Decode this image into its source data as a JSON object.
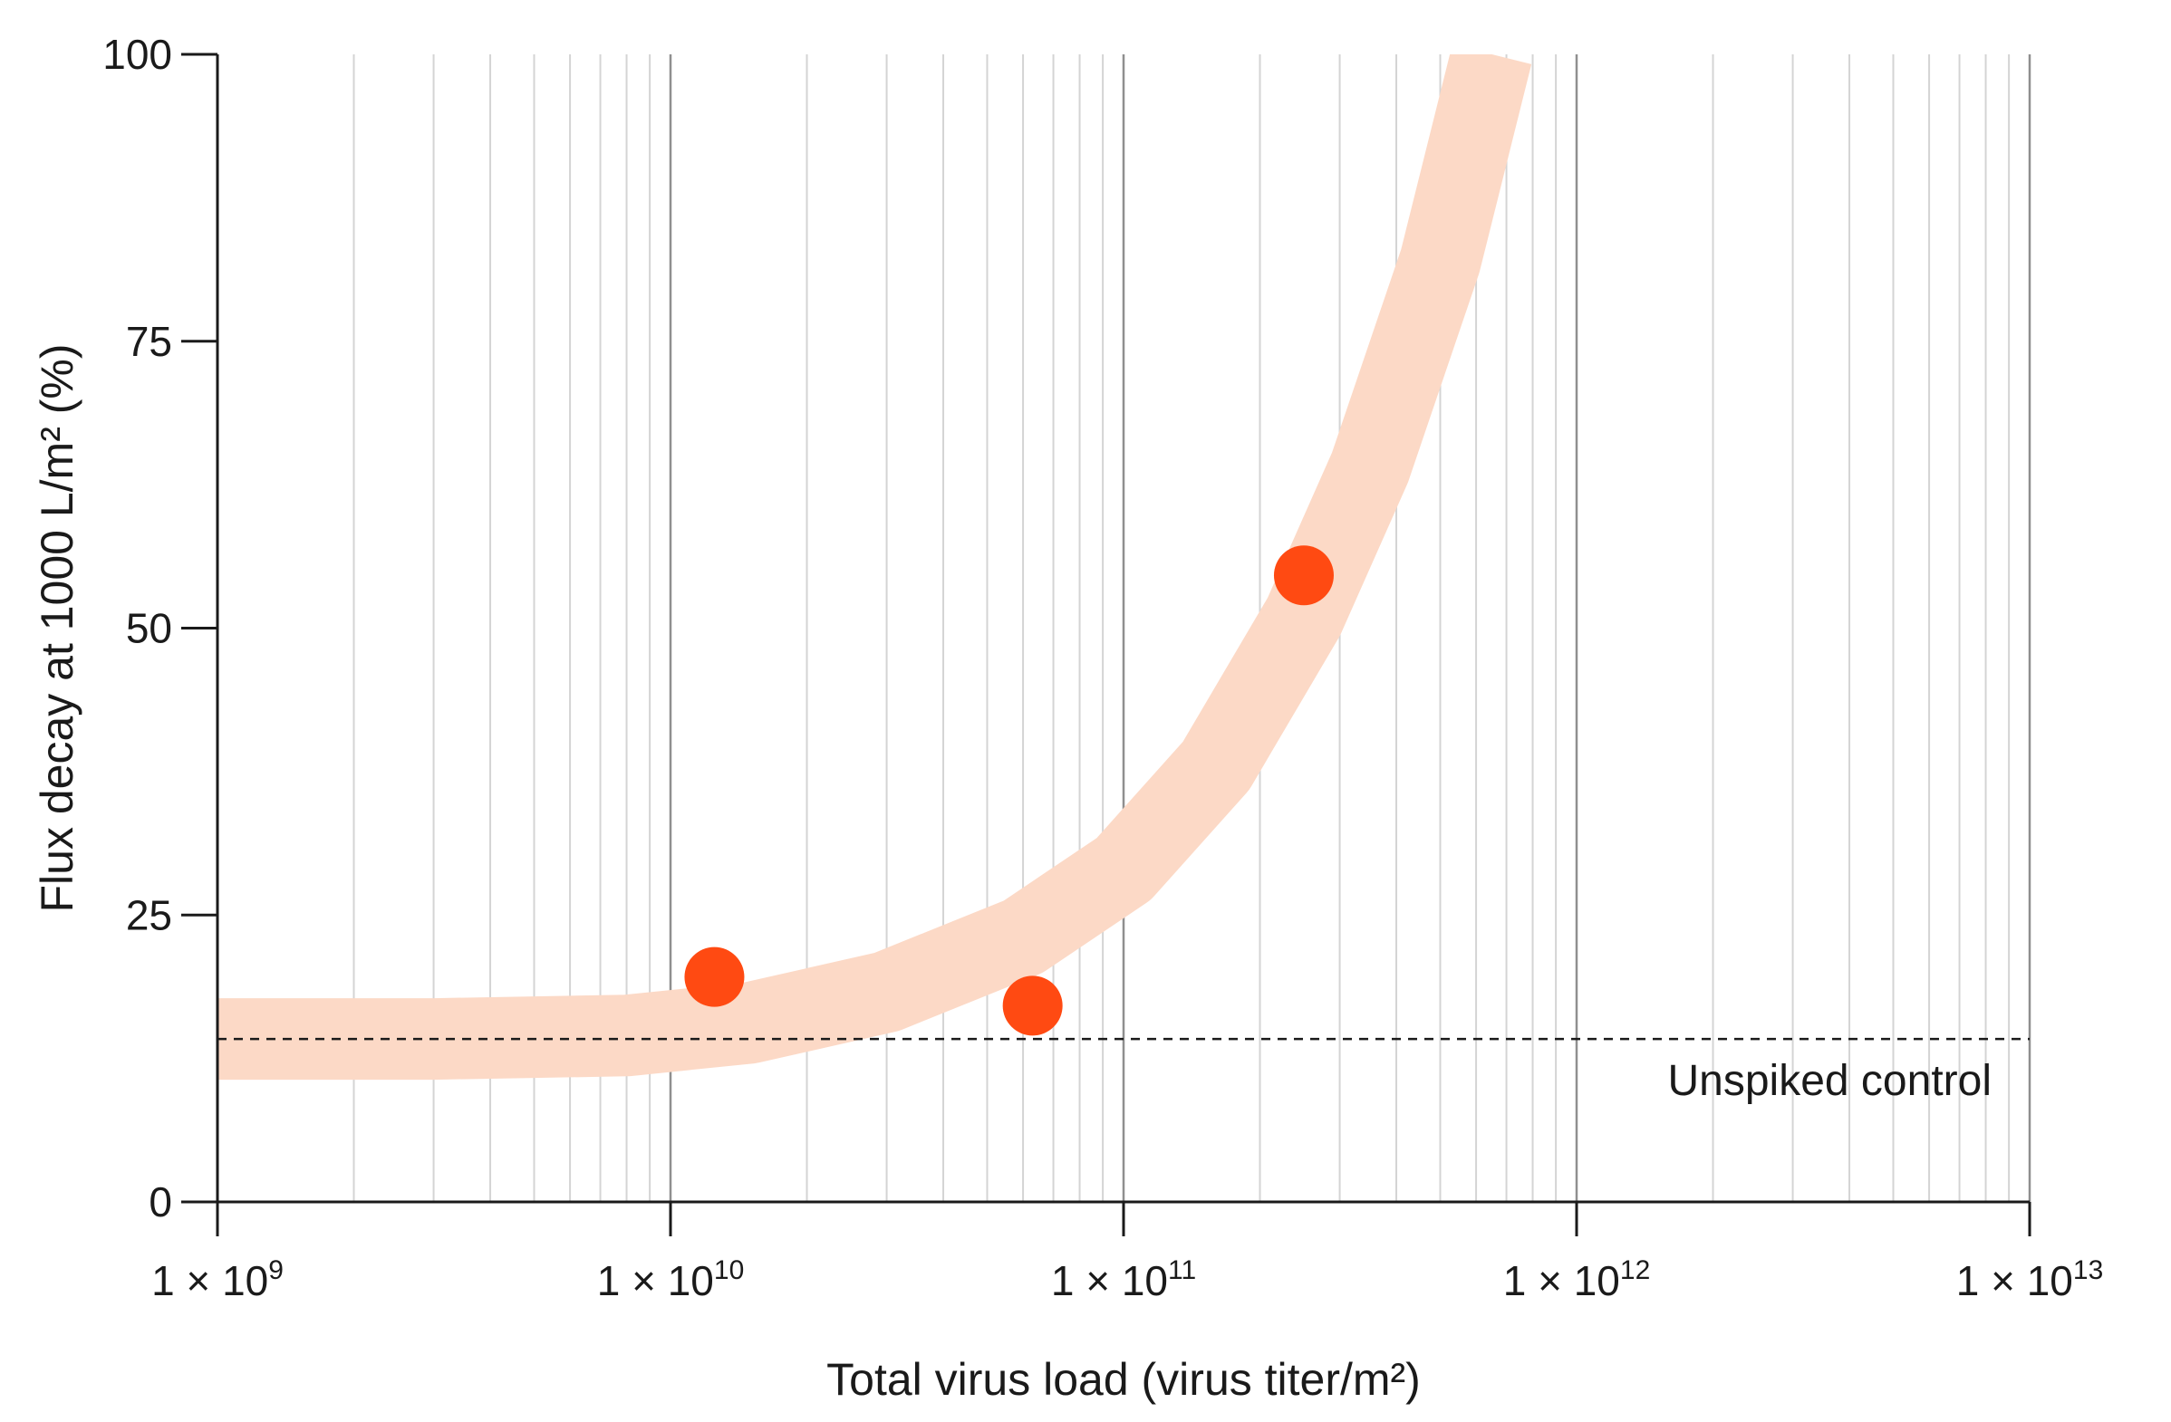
{
  "chart_data": {
    "type": "scatter",
    "title": "",
    "xlabel": "Total virus load (virus titer/m²)",
    "ylabel": "Flux decay at 1000 L/m² (%)",
    "x_scale": "log",
    "xlim": [
      1000000000,
      10000000000000
    ],
    "ylim": [
      0,
      100
    ],
    "grid": true,
    "legend": "none",
    "x_ticks": [
      {
        "value": 1000000000,
        "label_base": "1 × 10",
        "label_exp": "9"
      },
      {
        "value": 10000000000,
        "label_base": "1 × 10",
        "label_exp": "10"
      },
      {
        "value": 100000000000,
        "label_base": "1 × 10",
        "label_exp": "11"
      },
      {
        "value": 1000000000000,
        "label_base": "1 × 10",
        "label_exp": "12"
      },
      {
        "value": 10000000000000,
        "label_base": "1 × 10",
        "label_exp": "13"
      }
    ],
    "y_ticks": [
      {
        "value": 0,
        "label": "0"
      },
      {
        "value": 25,
        "label": "25"
      },
      {
        "value": 50,
        "label": "50"
      },
      {
        "value": 75,
        "label": "75"
      },
      {
        "value": 100,
        "label": "100"
      }
    ],
    "series": [
      {
        "x": [
          12500000000,
          63000000000,
          250000000000
        ],
        "y": [
          19.6,
          17.1,
          54.6
        ],
        "color": "#ff4a12"
      }
    ],
    "trend_band": {
      "color": "#fcd9c6",
      "x": [
        1000000000,
        3000000000,
        8000000000,
        15000000000,
        30000000000,
        60000000000,
        100000000000,
        160000000000,
        250000000000,
        350000000000,
        500000000000,
        650000000000
      ],
      "y": [
        14.2,
        14.2,
        14.5,
        15.6,
        18.3,
        23.1,
        29.0,
        38.0,
        51.0,
        64.0,
        82.0,
        100.0
      ]
    },
    "reference_line": {
      "y": 14.2,
      "label": "Unspiked control",
      "style": "dashed",
      "color": "#1a1a1a"
    }
  }
}
